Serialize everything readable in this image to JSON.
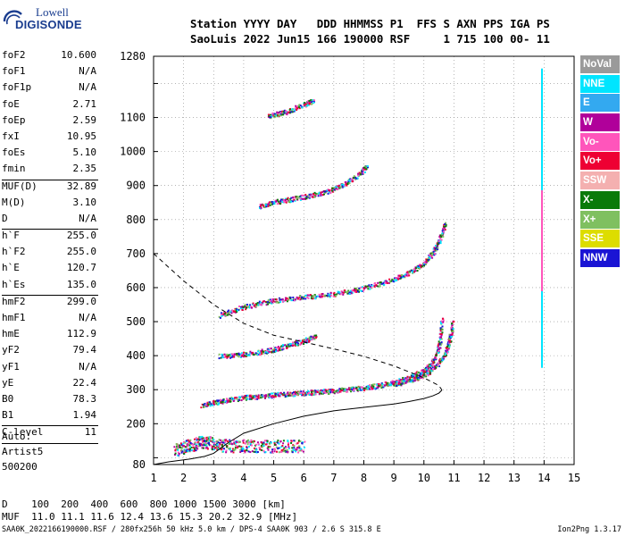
{
  "logo": {
    "line1": "Lowell",
    "line2": "DIGISONDE"
  },
  "header": {
    "line1": "Station YYYY DAY   DDD HHMMSS P1  FFS S AXN PPS IGA PS",
    "line2": "SaoLuis 2022 Jun15 166 190000 RSF     1 715 100 00- 11"
  },
  "params": [
    {
      "k": "foF2",
      "v": "10.600"
    },
    {
      "k": "foF1",
      "v": "N/A"
    },
    {
      "k": "foF1p",
      "v": "N/A"
    },
    {
      "k": "foE",
      "v": "2.71"
    },
    {
      "k": "foEp",
      "v": "2.59"
    },
    {
      "k": "fxI",
      "v": "10.95"
    },
    {
      "k": "foEs",
      "v": "5.10"
    },
    {
      "k": "fmin",
      "v": "2.35"
    },
    {
      "sep": true
    },
    {
      "k": "MUF(D)",
      "v": "32.89"
    },
    {
      "k": "M(D)",
      "v": "3.10"
    },
    {
      "k": "D",
      "v": "N/A"
    },
    {
      "sep": true
    },
    {
      "k": "h`F",
      "v": "255.0"
    },
    {
      "k": "h`F2",
      "v": "255.0"
    },
    {
      "k": "h`E",
      "v": "120.7"
    },
    {
      "k": "h`Es",
      "v": "135.0"
    },
    {
      "sep": true
    },
    {
      "k": "hmF2",
      "v": "299.0"
    },
    {
      "k": "hmF1",
      "v": "N/A"
    },
    {
      "k": "hmE",
      "v": "112.9"
    },
    {
      "k": "yF2",
      "v": "79.4"
    },
    {
      "k": "yF1",
      "v": "N/A"
    },
    {
      "k": "yE",
      "v": "22.4"
    },
    {
      "k": "B0",
      "v": "78.3"
    },
    {
      "k": "B1",
      "v": "1.94"
    },
    {
      "sep": true
    },
    {
      "k": "C-level",
      "v": "11"
    },
    {
      "sep": true
    }
  ],
  "auto": [
    "Auto:",
    "Artist5",
    "500200"
  ],
  "bottom": {
    "line1": "D    100  200  400  600  800 1000 1500 3000 [km]",
    "line2": "MUF  11.0 11.1 11.6 12.4 13.6 15.3 20.2 32.9 [MHz]"
  },
  "footer": {
    "left": "SAA0K_2022166190000.RSF / 280fx256h 50 kHz 5.0 km / DPS-4 SAA0K 903 / 2.6 S 315.8 E",
    "right": "Ion2Png 1.3.17"
  },
  "legend": [
    {
      "label": "NoVal",
      "color": "#9a9a9a"
    },
    {
      "label": "NNE",
      "color": "#00e5ff"
    },
    {
      "label": "E",
      "color": "#33a9f0"
    },
    {
      "label": "W",
      "color": "#b0009a"
    },
    {
      "label": "Vo-",
      "color": "#ff55bb"
    },
    {
      "label": "Vo+",
      "color": "#ee0033"
    },
    {
      "label": "SSW",
      "color": "#f4b0b0"
    },
    {
      "label": "X-",
      "color": "#0a7a0a"
    },
    {
      "label": "X+",
      "color": "#7fc060"
    },
    {
      "label": "SSE",
      "color": "#dddd00"
    },
    {
      "label": "NNW",
      "color": "#1a14d4"
    }
  ],
  "chart_data": {
    "type": "scatter",
    "xlim": [
      1,
      15
    ],
    "ylim": [
      80,
      1280
    ],
    "x_ticks": [
      "1",
      "2",
      "3",
      "4",
      "5",
      "6",
      "7",
      "8",
      "9",
      "10",
      "11",
      "12",
      "13",
      "14",
      "15"
    ],
    "y_ticks": [
      "80",
      "200",
      "300",
      "400",
      "500",
      "600",
      "700",
      "800",
      "900",
      "1000",
      "1100",
      "1280"
    ],
    "grid": "dotted vertical at each MHz, dotted horizontal at each 100 km",
    "traces": [
      {
        "name": "E / Es echoes",
        "x": [
          1.7,
          2.0,
          2.3,
          2.6,
          2.9,
          3.2,
          3.6,
          4.0,
          4.5,
          5.0,
          5.5,
          6.0
        ],
        "y": [
          125,
          132,
          140,
          148,
          145,
          138,
          136,
          136,
          135,
          135,
          135,
          135
        ]
      },
      {
        "name": "F2 1st hop",
        "x": [
          2.6,
          3.0,
          3.5,
          4.0,
          4.5,
          5.0,
          5.5,
          6.0,
          6.5,
          7.0,
          7.5,
          8.0,
          8.5,
          9.0,
          9.5,
          10.0,
          10.3,
          10.5,
          10.6
        ],
        "y": [
          255,
          263,
          272,
          278,
          282,
          286,
          289,
          292,
          295,
          298,
          302,
          307,
          314,
          324,
          337,
          358,
          385,
          430,
          515
        ]
      },
      {
        "name": "F2 extraordinary",
        "x": [
          9.0,
          9.5,
          10.0,
          10.4,
          10.7,
          10.85,
          10.95
        ],
        "y": [
          318,
          327,
          345,
          372,
          405,
          450,
          505
        ]
      },
      {
        "name": "Es multiple",
        "x": [
          3.2,
          3.8,
          4.4,
          5.0,
          5.5,
          6.0,
          6.4
        ],
        "y": [
          400,
          404,
          410,
          420,
          432,
          445,
          458
        ]
      },
      {
        "name": "F2 2nd hop",
        "x": [
          3.2,
          3.8,
          4.5,
          5.2,
          6.0,
          6.8,
          7.5,
          8.2,
          9.0,
          9.6,
          10.0,
          10.3,
          10.5,
          10.7
        ],
        "y": [
          520,
          540,
          555,
          566,
          574,
          580,
          590,
          605,
          625,
          650,
          675,
          705,
          740,
          790
        ]
      },
      {
        "name": "F2 3rd hop",
        "x": [
          4.5,
          5.0,
          5.6,
          6.2,
          6.8,
          7.3,
          7.8,
          8.1
        ],
        "y": [
          840,
          852,
          862,
          872,
          885,
          905,
          930,
          960
        ]
      },
      {
        "name": "F2 4th hop",
        "x": [
          4.8,
          5.1,
          5.4,
          6.0,
          6.3
        ],
        "y": [
          1105,
          1112,
          1118,
          1140,
          1150
        ]
      }
    ],
    "profile_solid": {
      "x": [
        0.5,
        1.5,
        2.2,
        2.7,
        3.0,
        3.5,
        4.0,
        5.0,
        6.0,
        7.0,
        8.0,
        9.0,
        9.5,
        10.0,
        10.3,
        10.5,
        10.6
      ],
      "y": [
        80,
        88,
        96,
        104,
        113,
        145,
        172,
        200,
        222,
        238,
        248,
        258,
        265,
        274,
        282,
        290,
        299
      ]
    },
    "profile_dashed": {
      "x": [
        1.0,
        2.0,
        3.0,
        4.0,
        5.0,
        6.0,
        7.0,
        8.0,
        9.0,
        10.0,
        10.5,
        10.6
      ],
      "y": [
        700,
        620,
        550,
        495,
        460,
        440,
        420,
        398,
        370,
        335,
        312,
        299
      ]
    }
  }
}
